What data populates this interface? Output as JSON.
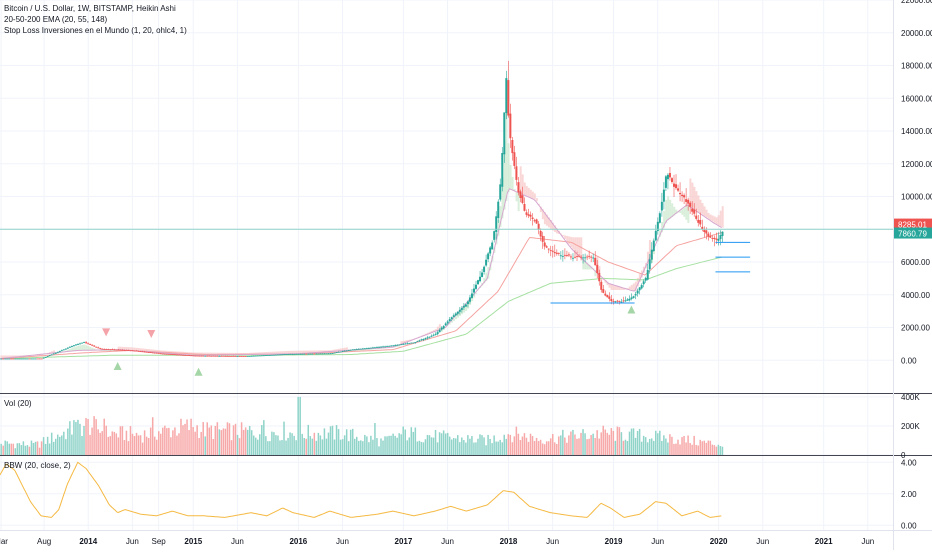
{
  "legend": {
    "symbol": "Bitcoin / U.S. Dollar, 1W, BITSTAMP, Heikin Ashi",
    "ema": "20-50-200 EMA (20, 55, 148)",
    "stop_loss": "Stop Loss Inversiones en el Mundo (1, 20, ohlc4, 1)"
  },
  "volume_label": "Vol (20)",
  "bbw_label": "BBW (20, close, 2)",
  "price_badges": {
    "high": "8285.01",
    "low": "7860.79"
  },
  "chart_data": [
    {
      "type": "candlestick",
      "title": "Bitcoin / U.S. Dollar, 1W, BITSTAMP, Heikin Ashi",
      "ylim": [
        -2000,
        22000
      ],
      "y_ticks": [
        "22000.00",
        "20000.00",
        "18000.00",
        "16000.00",
        "14000.00",
        "12000.00",
        "10000.00",
        "8000.00",
        "6000.00",
        "4000.00",
        "2000.00",
        "0.00"
      ],
      "y_tick_values": [
        22000,
        20000,
        18000,
        16000,
        14000,
        12000,
        10000,
        8000,
        6000,
        4000,
        2000,
        0
      ],
      "x_ticks": [
        "Mar",
        "Aug",
        "2014",
        "Jun",
        "Sep",
        "2015",
        "Jun",
        "2016",
        "Jun",
        "2017",
        "Jun",
        "2018",
        "Jun",
        "2019",
        "Jun",
        "2020",
        "Jun",
        "2021",
        "Jun"
      ],
      "x_tick_years": [
        2013.17,
        2013.58,
        2014.0,
        2014.42,
        2014.67,
        2015.0,
        2015.42,
        2016.0,
        2016.42,
        2017.0,
        2017.42,
        2018.0,
        2018.42,
        2019.0,
        2019.42,
        2020.0,
        2020.42,
        2021.0,
        2021.42
      ],
      "xlim_years": [
        2013.16,
        2021.66
      ],
      "price_key_points": [
        [
          2013.16,
          100
        ],
        [
          2013.55,
          105
        ],
        [
          2013.85,
          900
        ],
        [
          2013.95,
          1100
        ],
        [
          2014.1,
          700
        ],
        [
          2014.4,
          600
        ],
        [
          2014.7,
          400
        ],
        [
          2015.0,
          280
        ],
        [
          2015.5,
          250
        ],
        [
          2015.9,
          380
        ],
        [
          2016.3,
          420
        ],
        [
          2016.5,
          650
        ],
        [
          2016.9,
          900
        ],
        [
          2017.1,
          1100
        ],
        [
          2017.3,
          1600
        ],
        [
          2017.45,
          2600
        ],
        [
          2017.6,
          3500
        ],
        [
          2017.75,
          5500
        ],
        [
          2017.85,
          7500
        ],
        [
          2017.92,
          11000
        ],
        [
          2017.97,
          17500
        ],
        [
          2018.0,
          14000
        ],
        [
          2018.08,
          10500
        ],
        [
          2018.15,
          9000
        ],
        [
          2018.25,
          8500
        ],
        [
          2018.33,
          7000
        ],
        [
          2018.45,
          6500
        ],
        [
          2018.6,
          6300
        ],
        [
          2018.8,
          6300
        ],
        [
          2018.88,
          4200
        ],
        [
          2018.97,
          3600
        ],
        [
          2019.1,
          3600
        ],
        [
          2019.2,
          4000
        ],
        [
          2019.3,
          5000
        ],
        [
          2019.38,
          7500
        ],
        [
          2019.45,
          9500
        ],
        [
          2019.5,
          11500
        ],
        [
          2019.58,
          10500
        ],
        [
          2019.66,
          10000
        ],
        [
          2019.75,
          9000
        ],
        [
          2019.82,
          8200
        ],
        [
          2019.9,
          7500
        ],
        [
          2019.98,
          7300
        ],
        [
          2020.03,
          7900
        ]
      ],
      "ema20_key_points": [
        [
          2013.16,
          100
        ],
        [
          2013.9,
          600
        ],
        [
          2014.3,
          650
        ],
        [
          2015.0,
          300
        ],
        [
          2016.0,
          400
        ],
        [
          2016.9,
          800
        ],
        [
          2017.4,
          2000
        ],
        [
          2017.8,
          5000
        ],
        [
          2018.0,
          10500
        ],
        [
          2018.25,
          9800
        ],
        [
          2018.6,
          6800
        ],
        [
          2018.95,
          4700
        ],
        [
          2019.2,
          4200
        ],
        [
          2019.5,
          8500
        ],
        [
          2019.7,
          9500
        ],
        [
          2019.95,
          8400
        ],
        [
          2020.03,
          8100
        ]
      ],
      "ema55_key_points": [
        [
          2013.16,
          100
        ],
        [
          2013.95,
          450
        ],
        [
          2014.4,
          600
        ],
        [
          2015.1,
          350
        ],
        [
          2016.0,
          380
        ],
        [
          2016.9,
          650
        ],
        [
          2017.5,
          1800
        ],
        [
          2017.9,
          4200
        ],
        [
          2018.2,
          7500
        ],
        [
          2018.6,
          7200
        ],
        [
          2018.95,
          6000
        ],
        [
          2019.3,
          5200
        ],
        [
          2019.6,
          7000
        ],
        [
          2020.03,
          7800
        ]
      ],
      "ema200_key_points": [
        [
          2013.16,
          100
        ],
        [
          2014.2,
          300
        ],
        [
          2015.5,
          300
        ],
        [
          2016.5,
          350
        ],
        [
          2017.0,
          550
        ],
        [
          2017.6,
          1600
        ],
        [
          2018.0,
          3600
        ],
        [
          2018.4,
          4700
        ],
        [
          2018.9,
          5000
        ],
        [
          2019.3,
          4900
        ],
        [
          2019.6,
          5600
        ],
        [
          2020.03,
          6300
        ]
      ],
      "horizontal_lines": [
        {
          "y": 8000,
          "x_from": 2013.16,
          "x_to": 2021.66,
          "color": "#8fd3c9"
        },
        {
          "y": 3500,
          "x_from": 2018.4,
          "x_to": 2019.2,
          "color": "#2196f3"
        },
        {
          "y": 7200,
          "x_from": 2019.97,
          "x_to": 2020.3,
          "color": "#2196f3"
        },
        {
          "y": 6300,
          "x_from": 2019.97,
          "x_to": 2020.3,
          "color": "#2196f3"
        },
        {
          "y": 5400,
          "x_from": 2019.97,
          "x_to": 2020.3,
          "color": "#2196f3"
        }
      ],
      "sell_markers": [
        [
          2014.17,
          1700
        ],
        [
          2014.6,
          1600
        ]
      ],
      "buy_markers": [
        [
          2014.28,
          -350
        ],
        [
          2015.05,
          -700
        ],
        [
          2019.17,
          3100
        ]
      ],
      "colors": {
        "up": "#26a69a",
        "down": "#ef5350",
        "ema20": "#d6a7cf",
        "ema55": "#f5a3a0",
        "ema200": "#a5e0a0",
        "band_up": "#cde9cf",
        "band_down": "#f8c9c9"
      }
    },
    {
      "type": "bar",
      "title": "Vol (20)",
      "ylim": [
        0,
        420000
      ],
      "y_ticks": [
        "400K",
        "200K",
        "0"
      ],
      "y_tick_values": [
        400000,
        200000,
        0
      ],
      "volume_key_points": [
        [
          2013.16,
          80000
        ],
        [
          2013.5,
          70000
        ],
        [
          2013.85,
          180000
        ],
        [
          2014.0,
          210000
        ],
        [
          2014.17,
          150000
        ],
        [
          2014.5,
          140000
        ],
        [
          2015.0,
          200000
        ],
        [
          2015.1,
          170000
        ],
        [
          2015.5,
          160000
        ],
        [
          2016.0,
          150000
        ],
        [
          2016.4,
          150000
        ],
        [
          2016.8,
          90000
        ],
        [
          2017.0,
          150000
        ],
        [
          2017.4,
          120000
        ],
        [
          2017.8,
          100000
        ],
        [
          2018.0,
          150000
        ],
        [
          2018.3,
          110000
        ],
        [
          2018.9,
          150000
        ],
        [
          2019.3,
          130000
        ],
        [
          2019.6,
          110000
        ],
        [
          2020.03,
          70000
        ]
      ],
      "spikes": [
        [
          2013.85,
          240000
        ],
        [
          2013.98,
          230000
        ],
        [
          2014.15,
          250000
        ],
        [
          2014.6,
          260000
        ],
        [
          2014.7,
          150000
        ],
        [
          2015.2,
          200000
        ],
        [
          2015.53,
          200000
        ],
        [
          2015.66,
          240000
        ],
        [
          2015.85,
          230000
        ],
        [
          2016.0,
          400000
        ],
        [
          2016.72,
          220000
        ]
      ]
    },
    {
      "type": "line",
      "title": "BBW (20, close, 2)",
      "ylim": [
        -0.3,
        4.4
      ],
      "y_ticks": [
        "4.00",
        "2.00",
        "0.00"
      ],
      "y_tick_values": [
        4,
        2,
        0
      ],
      "bbw_key_points": [
        [
          2013.16,
          3.2
        ],
        [
          2013.22,
          3.9
        ],
        [
          2013.3,
          3.5
        ],
        [
          2013.45,
          1.5
        ],
        [
          2013.55,
          0.6
        ],
        [
          2013.65,
          0.5
        ],
        [
          2013.72,
          1.0
        ],
        [
          2013.8,
          2.6
        ],
        [
          2013.9,
          4.0
        ],
        [
          2013.98,
          3.6
        ],
        [
          2014.1,
          2.5
        ],
        [
          2014.2,
          1.3
        ],
        [
          2014.28,
          0.8
        ],
        [
          2014.35,
          1.0
        ],
        [
          2014.5,
          0.7
        ],
        [
          2014.65,
          0.6
        ],
        [
          2014.8,
          0.9
        ],
        [
          2014.95,
          0.6
        ],
        [
          2015.1,
          0.6
        ],
        [
          2015.3,
          0.5
        ],
        [
          2015.55,
          0.8
        ],
        [
          2015.7,
          0.6
        ],
        [
          2015.85,
          1.1
        ],
        [
          2015.95,
          0.8
        ],
        [
          2016.15,
          0.5
        ],
        [
          2016.3,
          0.9
        ],
        [
          2016.5,
          0.5
        ],
        [
          2016.75,
          0.7
        ],
        [
          2016.9,
          0.9
        ],
        [
          2017.1,
          0.6
        ],
        [
          2017.3,
          0.9
        ],
        [
          2017.45,
          1.2
        ],
        [
          2017.6,
          0.9
        ],
        [
          2017.8,
          1.3
        ],
        [
          2017.95,
          2.2
        ],
        [
          2018.05,
          2.1
        ],
        [
          2018.2,
          1.2
        ],
        [
          2018.4,
          0.8
        ],
        [
          2018.6,
          0.6
        ],
        [
          2018.75,
          0.5
        ],
        [
          2018.88,
          1.4
        ],
        [
          2018.97,
          1.1
        ],
        [
          2019.1,
          0.5
        ],
        [
          2019.25,
          0.7
        ],
        [
          2019.4,
          1.5
        ],
        [
          2019.5,
          1.4
        ],
        [
          2019.65,
          0.6
        ],
        [
          2019.8,
          0.9
        ],
        [
          2019.92,
          0.5
        ],
        [
          2020.03,
          0.6
        ]
      ],
      "color": "#f5b942"
    }
  ]
}
